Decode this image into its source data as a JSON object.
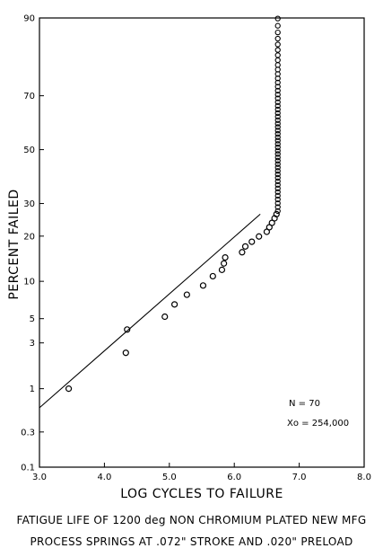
{
  "chart_data": {
    "type": "scatter",
    "title": "",
    "xlabel": "LOG CYCLES TO FAILURE",
    "ylabel": "PERCENT FAILED",
    "xlim": [
      3.0,
      8.0
    ],
    "ylim": [
      0.1,
      90
    ],
    "y_scale": "normal-probability",
    "x_ticks": [
      "3.0",
      "4.0",
      "5.0",
      "6.0",
      "7.0",
      "8.0"
    ],
    "y_ticks": [
      {
        "value": 0.1,
        "label": "0.1"
      },
      {
        "value": 0.3,
        "label": "0.3"
      },
      {
        "value": 1,
        "label": "1"
      },
      {
        "value": 3,
        "label": "3"
      },
      {
        "value": 5,
        "label": "5"
      },
      {
        "value": 10,
        "label": "10"
      },
      {
        "value": 20,
        "label": "20"
      },
      {
        "value": 30,
        "label": "30"
      },
      {
        "value": 50,
        "label": "50"
      },
      {
        "value": 70,
        "label": "70"
      },
      {
        "value": 90,
        "label": "90"
      }
    ],
    "grid": false,
    "fit_line": {
      "x": [
        3.0,
        6.4
      ],
      "y": [
        0.6,
        26.5
      ]
    },
    "points": [
      {
        "x": 3.45,
        "y": 1.0
      },
      {
        "x": 4.33,
        "y": 2.4
      },
      {
        "x": 4.35,
        "y": 4.0
      },
      {
        "x": 4.93,
        "y": 5.2
      },
      {
        "x": 5.08,
        "y": 6.6
      },
      {
        "x": 5.27,
        "y": 7.9
      },
      {
        "x": 5.52,
        "y": 9.3
      },
      {
        "x": 5.67,
        "y": 10.9
      },
      {
        "x": 5.81,
        "y": 12.1
      },
      {
        "x": 5.84,
        "y": 13.4
      },
      {
        "x": 5.86,
        "y": 14.7
      },
      {
        "x": 6.12,
        "y": 15.9
      },
      {
        "x": 6.17,
        "y": 17.3
      },
      {
        "x": 6.27,
        "y": 18.5
      },
      {
        "x": 6.38,
        "y": 19.9
      },
      {
        "x": 6.5,
        "y": 21.2
      },
      {
        "x": 6.54,
        "y": 22.5
      },
      {
        "x": 6.58,
        "y": 23.8
      },
      {
        "x": 6.62,
        "y": 25.2
      },
      {
        "x": 6.65,
        "y": 26.5
      }
    ],
    "vertical_cluster": {
      "x": 6.67,
      "y_from": 27.5,
      "y_to": 90,
      "step": 1.3
    },
    "annotations": {
      "n": "N = 70",
      "xo": "Xo = 254,000"
    }
  },
  "caption": {
    "line1": "FATIGUE LIFE OF 1200 deg NON CHROMIUM PLATED NEW MFG",
    "line2": "PROCESS SPRINGS AT .072\" STROKE AND .020\" PRELOAD"
  }
}
